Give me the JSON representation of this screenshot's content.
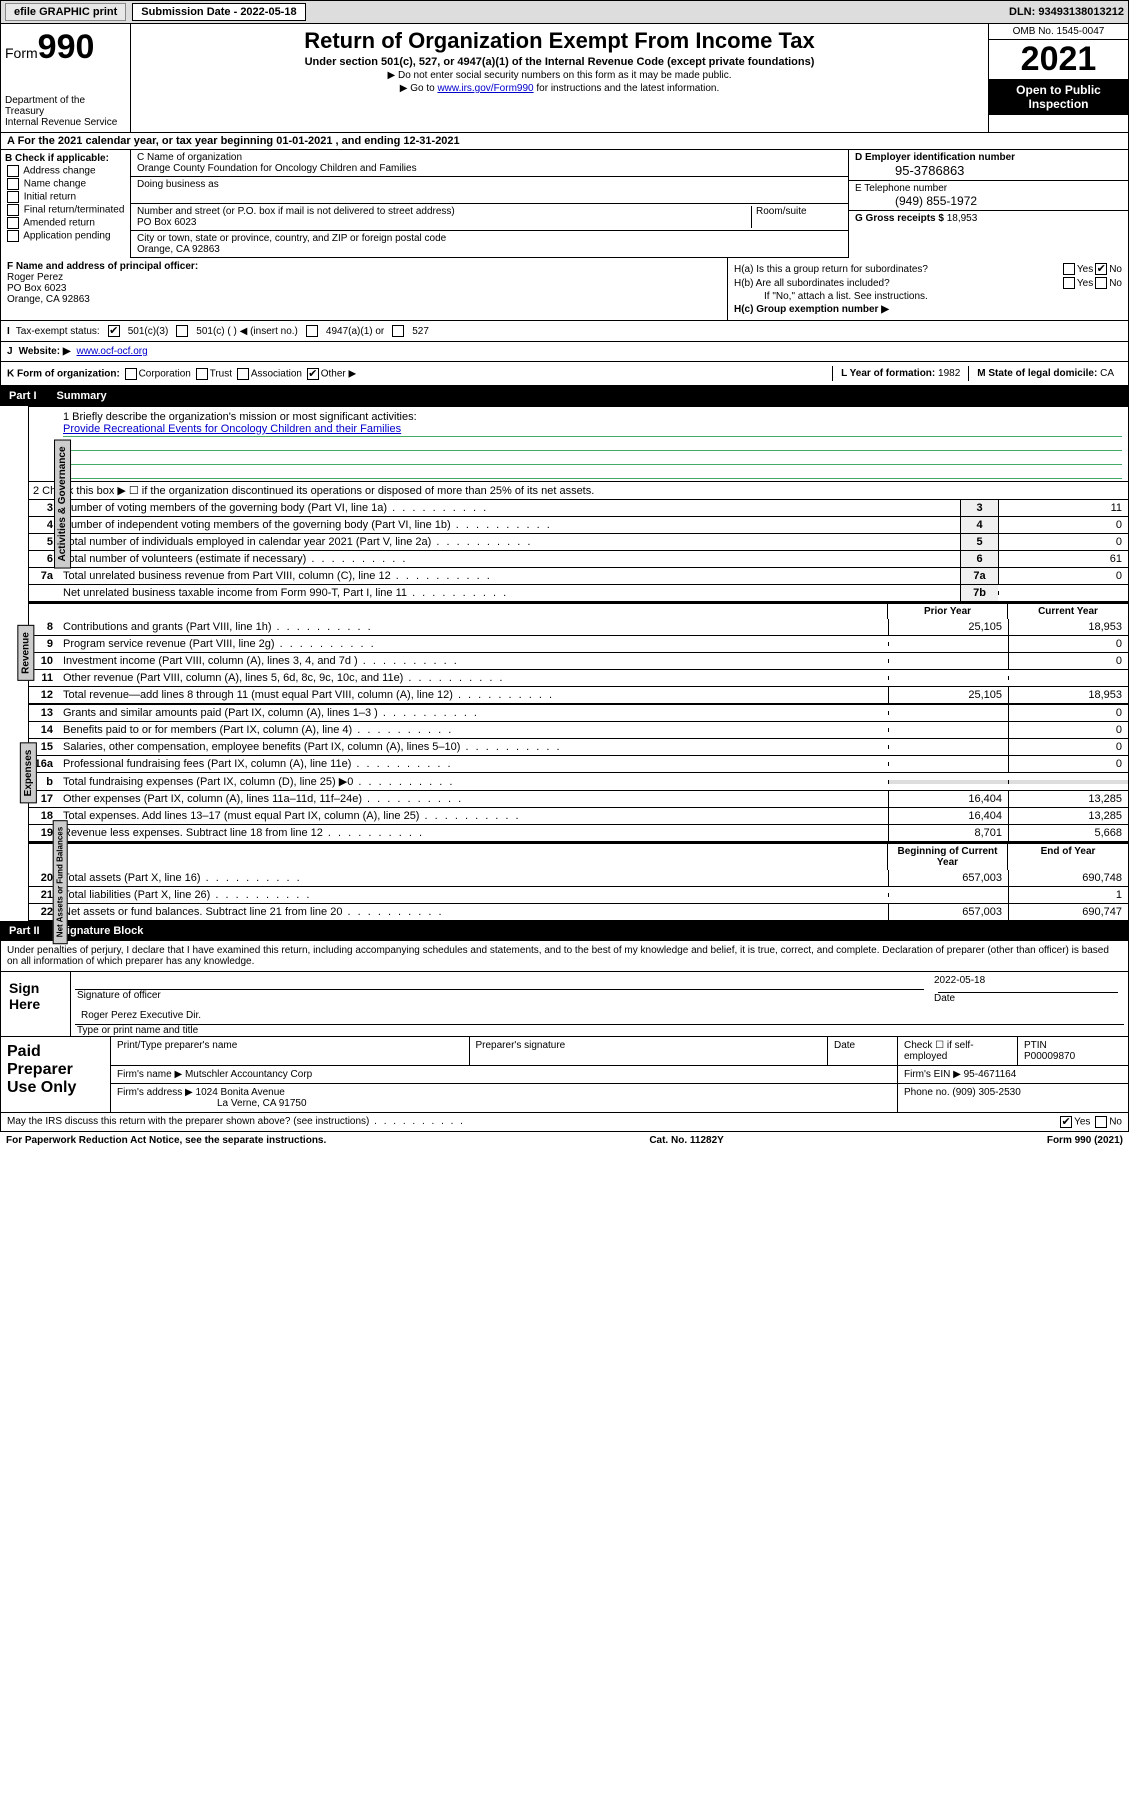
{
  "top": {
    "efile": "efile GRAPHIC print",
    "sub_label": "Submission Date - 2022-05-18",
    "dln": "DLN: 93493138013212"
  },
  "header": {
    "form_word": "Form",
    "form_num": "990",
    "title": "Return of Organization Exempt From Income Tax",
    "subtitle": "Under section 501(c), 527, or 4947(a)(1) of the Internal Revenue Code (except private foundations)",
    "note1": "▶ Do not enter social security numbers on this form as it may be made public.",
    "note2_pre": "▶ Go to ",
    "note2_link": "www.irs.gov/Form990",
    "note2_post": " for instructions and the latest information.",
    "dept": "Department of the Treasury",
    "irs": "Internal Revenue Service",
    "omb": "OMB No. 1545-0047",
    "year": "2021",
    "open": "Open to Public Inspection"
  },
  "a": {
    "text_pre": "A For the 2021 calendar year, or tax year beginning ",
    "begin": "01-01-2021",
    "mid": " , and ending ",
    "end": "12-31-2021"
  },
  "b": {
    "hdr": "B Check if applicable:",
    "opts": [
      "Address change",
      "Name change",
      "Initial return",
      "Final return/terminated",
      "Amended return",
      "Application pending"
    ]
  },
  "c": {
    "name_lbl": "C Name of organization",
    "name": "Orange County Foundation for Oncology Children and Families",
    "dba_lbl": "Doing business as",
    "street_lbl": "Number and street (or P.O. box if mail is not delivered to street address)",
    "suite_lbl": "Room/suite",
    "street": "PO Box 6023",
    "city_lbl": "City or town, state or province, country, and ZIP or foreign postal code",
    "city": "Orange, CA  92863"
  },
  "d": {
    "ein_lbl": "D Employer identification number",
    "ein": "95-3786863",
    "tel_lbl": "E Telephone number",
    "tel": "(949) 855-1972",
    "gross_lbl": "G Gross receipts $ ",
    "gross": "18,953"
  },
  "f": {
    "lbl": "F Name and address of principal officer:",
    "name": "Roger Perez",
    "addr1": "PO Box 6023",
    "addr2": "Orange, CA  92863"
  },
  "h": {
    "a_lbl": "H(a)  Is this a group return for subordinates?",
    "b_lbl": "H(b)  Are all subordinates included?",
    "b_note": "If \"No,\" attach a list. See instructions.",
    "c_lbl": "H(c)  Group exemption number ▶",
    "yes": "Yes",
    "no": "No"
  },
  "i": {
    "lbl": "Tax-exempt status:",
    "o1": "501(c)(3)",
    "o2": "501(c) (  ) ◀ (insert no.)",
    "o3": "4947(a)(1) or",
    "o4": "527"
  },
  "j": {
    "lbl": "Website: ▶",
    "val": "www.ocf-ocf.org"
  },
  "k": {
    "lbl": "K Form of organization:",
    "opts": [
      "Corporation",
      "Trust",
      "Association",
      "Other ▶"
    ],
    "l_lbl": "L Year of formation: ",
    "l_val": "1982",
    "m_lbl": "M State of legal domicile: ",
    "m_val": "CA"
  },
  "part1": {
    "hdr": "Part I",
    "title": "Summary"
  },
  "mission": {
    "lbl": "1   Briefly describe the organization's mission or most significant activities:",
    "text": "Provide Recreational Events for Oncology Children and their Families"
  },
  "line2": "2   Check this box ▶ ☐  if the organization discontinued its operations or disposed of more than 25% of its net assets.",
  "lines_single": [
    {
      "n": "3",
      "t": "Number of voting members of the governing body (Part VI, line 1a)",
      "box": "3",
      "v": "11"
    },
    {
      "n": "4",
      "t": "Number of independent voting members of the governing body (Part VI, line 1b)",
      "box": "4",
      "v": "0"
    },
    {
      "n": "5",
      "t": "Total number of individuals employed in calendar year 2021 (Part V, line 2a)",
      "box": "5",
      "v": "0"
    },
    {
      "n": "6",
      "t": "Total number of volunteers (estimate if necessary)",
      "box": "6",
      "v": "61"
    },
    {
      "n": "7a",
      "t": "Total unrelated business revenue from Part VIII, column (C), line 12",
      "box": "7a",
      "v": "0"
    },
    {
      "n": "",
      "t": "Net unrelated business taxable income from Form 990-T, Part I, line 11",
      "box": "7b",
      "v": ""
    }
  ],
  "col_hdrs": {
    "prior": "Prior Year",
    "current": "Current Year",
    "boy": "Beginning of Current Year",
    "eoy": "End of Year"
  },
  "revenue": [
    {
      "n": "8",
      "t": "Contributions and grants (Part VIII, line 1h)",
      "p": "25,105",
      "c": "18,953"
    },
    {
      "n": "9",
      "t": "Program service revenue (Part VIII, line 2g)",
      "p": "",
      "c": "0"
    },
    {
      "n": "10",
      "t": "Investment income (Part VIII, column (A), lines 3, 4, and 7d )",
      "p": "",
      "c": "0"
    },
    {
      "n": "11",
      "t": "Other revenue (Part VIII, column (A), lines 5, 6d, 8c, 9c, 10c, and 11e)",
      "p": "",
      "c": ""
    },
    {
      "n": "12",
      "t": "Total revenue—add lines 8 through 11 (must equal Part VIII, column (A), line 12)",
      "p": "25,105",
      "c": "18,953"
    }
  ],
  "expenses": [
    {
      "n": "13",
      "t": "Grants and similar amounts paid (Part IX, column (A), lines 1–3 )",
      "p": "",
      "c": "0"
    },
    {
      "n": "14",
      "t": "Benefits paid to or for members (Part IX, column (A), line 4)",
      "p": "",
      "c": "0"
    },
    {
      "n": "15",
      "t": "Salaries, other compensation, employee benefits (Part IX, column (A), lines 5–10)",
      "p": "",
      "c": "0"
    },
    {
      "n": "16a",
      "t": "Professional fundraising fees (Part IX, column (A), line 11e)",
      "p": "",
      "c": "0"
    },
    {
      "n": "b",
      "t": "Total fundraising expenses (Part IX, column (D), line 25) ▶0",
      "p": "",
      "c": "",
      "shade": true
    },
    {
      "n": "17",
      "t": "Other expenses (Part IX, column (A), lines 11a–11d, 11f–24e)",
      "p": "16,404",
      "c": "13,285"
    },
    {
      "n": "18",
      "t": "Total expenses. Add lines 13–17 (must equal Part IX, column (A), line 25)",
      "p": "16,404",
      "c": "13,285"
    },
    {
      "n": "19",
      "t": "Revenue less expenses. Subtract line 18 from line 12",
      "p": "8,701",
      "c": "5,668"
    }
  ],
  "netassets": [
    {
      "n": "20",
      "t": "Total assets (Part X, line 16)",
      "p": "657,003",
      "c": "690,748"
    },
    {
      "n": "21",
      "t": "Total liabilities (Part X, line 26)",
      "p": "",
      "c": "1"
    },
    {
      "n": "22",
      "t": "Net assets or fund balances. Subtract line 21 from line 20",
      "p": "657,003",
      "c": "690,747"
    }
  ],
  "vtabs": {
    "ag": "Activities & Governance",
    "rev": "Revenue",
    "exp": "Expenses",
    "na": "Net Assets or Fund Balances"
  },
  "part2": {
    "hdr": "Part II",
    "title": "Signature Block"
  },
  "sig": {
    "penalty": "Under penalties of perjury, I declare that I have examined this return, including accompanying schedules and statements, and to the best of my knowledge and belief, it is true, correct, and complete. Declaration of preparer (other than officer) is based on all information of which preparer has any knowledge.",
    "sign_here": "Sign Here",
    "sig_officer": "Signature of officer",
    "date_lbl": "Date",
    "date": "2022-05-18",
    "name": "Roger Perez  Executive Dir.",
    "name_lbl": "Type or print name and title"
  },
  "prep": {
    "title": "Paid Preparer Use Only",
    "h1": "Print/Type preparer's name",
    "h2": "Preparer's signature",
    "h3": "Date",
    "check_lbl": "Check ☐ if self-employed",
    "ptin_lbl": "PTIN",
    "ptin": "P00009870",
    "firm_lbl": "Firm's name    ▶",
    "firm": "Mutschler Accountancy Corp",
    "ein_lbl": "Firm's EIN ▶",
    "ein": "95-4671164",
    "addr_lbl": "Firm's address ▶",
    "addr1": "1024 Bonita Avenue",
    "addr2": "La Verne, CA  91750",
    "phone_lbl": "Phone no. ",
    "phone": "(909) 305-2530"
  },
  "footer": {
    "discuss": "May the IRS discuss this return with the preparer shown above? (see instructions)",
    "yes": "Yes",
    "no": "No",
    "paperwork": "For Paperwork Reduction Act Notice, see the separate instructions.",
    "cat": "Cat. No. 11282Y",
    "form": "Form 990 (2021)"
  }
}
